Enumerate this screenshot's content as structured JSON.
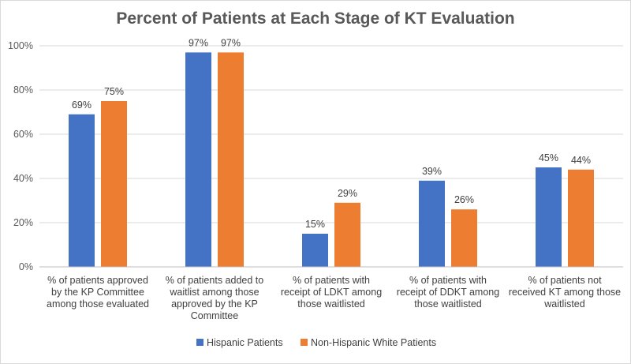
{
  "chart_data": {
    "type": "bar",
    "title": "Percent of Patients at Each Stage of KT Evaluation",
    "xlabel": "",
    "ylabel": "",
    "ylim": [
      0,
      100
    ],
    "yticks": [
      0,
      20,
      40,
      60,
      80,
      100
    ],
    "ytick_labels": [
      "0%",
      "20%",
      "40%",
      "60%",
      "80%",
      "100%"
    ],
    "categories": [
      [
        "% of patients approved",
        "by the KP Committee",
        "among those evaluated"
      ],
      [
        "% of patients added to",
        "waitlist among those",
        "approved by the KP",
        "Committee"
      ],
      [
        "% of patients with",
        "receipt of LDKT among",
        "those waitlisted"
      ],
      [
        "% of patients with",
        "receipt of DDKT among",
        "those waitlisted"
      ],
      [
        "% of patients not",
        "received KT among those",
        "waitlisted"
      ]
    ],
    "series": [
      {
        "name": "Hispanic Patients",
        "color": "#4472c4",
        "values": [
          69,
          97,
          15,
          39,
          45
        ],
        "labels": [
          "69%",
          "97%",
          "15%",
          "39%",
          "45%"
        ]
      },
      {
        "name": "Non-Hispanic White Patients",
        "color": "#ed7d31",
        "values": [
          75,
          97,
          29,
          26,
          44
        ],
        "labels": [
          "75%",
          "97%",
          "29%",
          "26%",
          "44%"
        ]
      }
    ],
    "grid": true,
    "legend_position": "bottom"
  }
}
